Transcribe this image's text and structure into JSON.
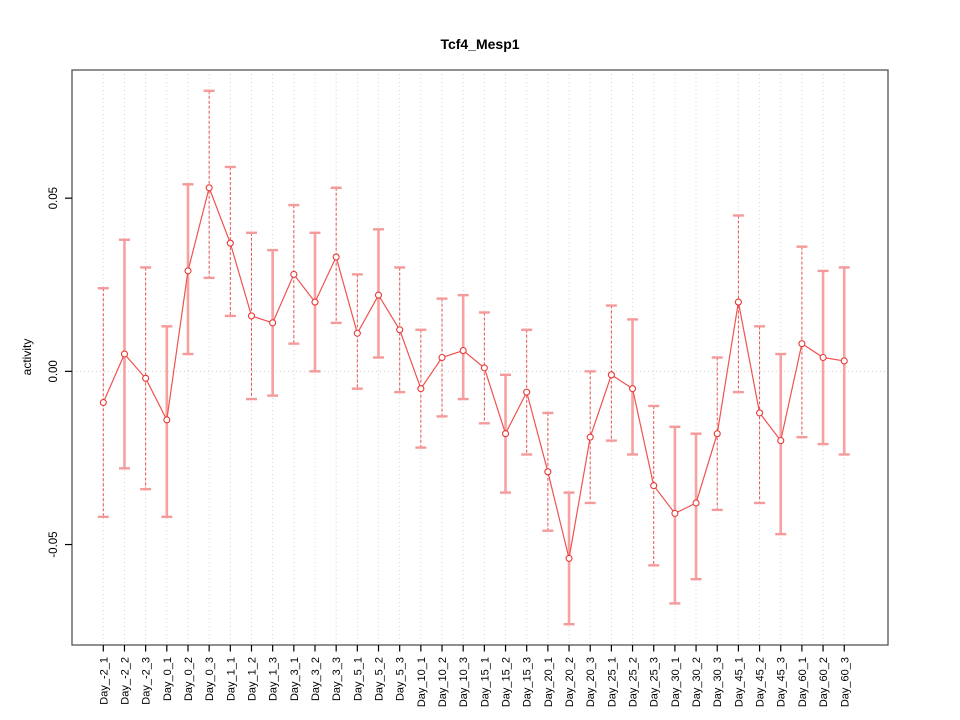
{
  "title": "Tcf4_Mesp1",
  "chart_data": {
    "type": "line",
    "title": "Tcf4_Mesp1",
    "xlabel": "",
    "ylabel": "activity",
    "marker": "open-circle",
    "error_bars": true,
    "legend": "none",
    "grid": "dotted vertical line at every category; dotted horizontal line at y=0",
    "ylim": [
      -0.079,
      0.087
    ],
    "yticks": [
      0.05,
      0.0,
      -0.05
    ],
    "ytick_labels": [
      "0.05",
      "0.00",
      "-0.05"
    ],
    "categories": [
      "Day_-2_1",
      "Day_-2_2",
      "Day_-2_3",
      "Day_0_1",
      "Day_0_2",
      "Day_0_3",
      "Day_1_1",
      "Day_1_2",
      "Day_1_3",
      "Day_3_1",
      "Day_3_2",
      "Day_3_3",
      "Day_5_1",
      "Day_5_2",
      "Day_5_3",
      "Day_10_1",
      "Day_10_2",
      "Day_10_3",
      "Day_15_1",
      "Day_15_2",
      "Day_15_3",
      "Day_20_1",
      "Day_20_2",
      "Day_20_3",
      "Day_25_1",
      "Day_25_2",
      "Day_25_3",
      "Day_30_1",
      "Day_30_2",
      "Day_30_3",
      "Day_45_1",
      "Day_45_2",
      "Day_45_3",
      "Day_60_1",
      "Day_60_2",
      "Day_60_3"
    ],
    "series": [
      {
        "name": "activity",
        "values": [
          -0.009,
          0.005,
          -0.002,
          -0.014,
          0.029,
          0.053,
          0.037,
          0.016,
          0.014,
          0.028,
          0.02,
          0.033,
          0.011,
          0.022,
          0.012,
          -0.005,
          0.004,
          0.006,
          0.001,
          -0.018,
          -0.006,
          -0.029,
          -0.054,
          -0.019,
          -0.001,
          -0.005,
          -0.033,
          -0.041,
          -0.038,
          -0.018,
          0.02,
          -0.012,
          -0.02,
          0.008,
          0.004,
          0.003
        ],
        "upper": [
          0.024,
          0.038,
          0.03,
          0.013,
          0.054,
          0.081,
          0.059,
          0.04,
          0.035,
          0.048,
          0.04,
          0.053,
          0.028,
          0.041,
          0.03,
          0.012,
          0.021,
          0.022,
          0.017,
          -0.001,
          0.012,
          -0.012,
          -0.035,
          0.0,
          0.019,
          0.015,
          -0.01,
          -0.016,
          -0.018,
          0.004,
          0.045,
          0.013,
          0.005,
          0.036,
          0.029,
          0.03
        ],
        "lower": [
          -0.042,
          -0.028,
          -0.034,
          -0.042,
          0.005,
          0.027,
          0.016,
          -0.008,
          -0.007,
          0.008,
          0.0,
          0.014,
          -0.005,
          0.004,
          -0.006,
          -0.022,
          -0.013,
          -0.008,
          -0.015,
          -0.035,
          -0.024,
          -0.046,
          -0.073,
          -0.038,
          -0.02,
          -0.024,
          -0.056,
          -0.067,
          -0.06,
          -0.04,
          -0.006,
          -0.038,
          -0.047,
          -0.019,
          -0.021,
          -0.024
        ],
        "bar_style": [
          "dashed",
          "solid",
          "dashed",
          "solid",
          "solid",
          "dashed",
          "dashed",
          "dashed",
          "solid",
          "dashed",
          "solid",
          "dashed",
          "dashed",
          "solid",
          "dashed",
          "dashed",
          "dashed",
          "solid",
          "dashed",
          "solid",
          "dashed",
          "dashed",
          "solid",
          "dashed",
          "dashed",
          "solid",
          "dashed",
          "solid",
          "solid",
          "dashed",
          "dashed",
          "dashed",
          "solid",
          "dashed",
          "solid",
          "solid"
        ]
      }
    ],
    "colors": {
      "line": "#ef5350",
      "marker_stroke": "#e53935",
      "marker_fill": "#ffffff",
      "errorbar_dashed": "#e65353",
      "errorbar_solid": "#f7a1a1",
      "cap": "#f49a9a",
      "grid": "#d4d4d4",
      "box": "#555555",
      "tick": "#000000",
      "text": "#000000"
    }
  }
}
